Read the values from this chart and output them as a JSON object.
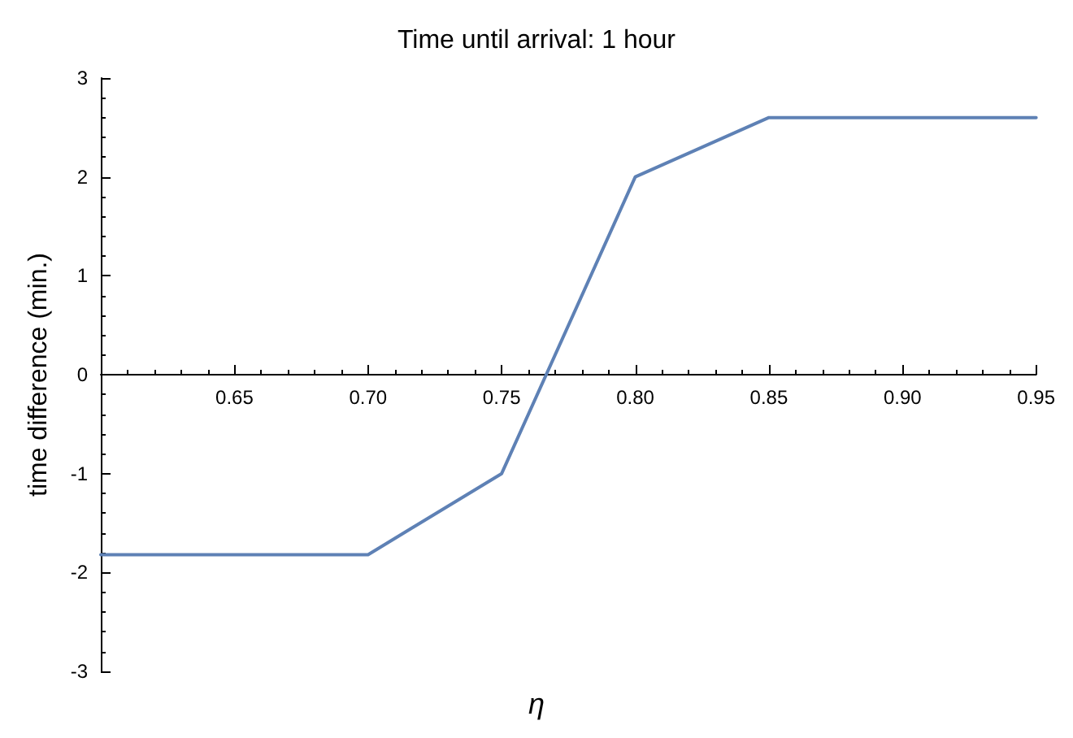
{
  "chart_data": {
    "type": "line",
    "title": "Time until arrival: 1 hour",
    "xlabel": "η",
    "ylabel": "time difference (min.)",
    "x": [
      0.6,
      0.7,
      0.75,
      0.8,
      0.85,
      0.95
    ],
    "series": [
      {
        "color": "#5e81b5",
        "values": [
          -1.82,
          -1.82,
          -1.0,
          2.0,
          2.6,
          2.6
        ]
      }
    ],
    "xlim": [
      0.6,
      0.95
    ],
    "xticks": [
      0.65,
      {
        "value": 0.7,
        "label": "0.70"
      },
      0.75,
      {
        "value": 0.8,
        "label": "0.80"
      },
      0.85,
      {
        "value": 0.9,
        "label": "0.90"
      },
      0.95
    ],
    "ylim": [
      -3,
      3
    ],
    "yticks": [
      -3,
      -2,
      -1,
      0,
      1,
      2,
      3
    ],
    "grid": false,
    "marker": "none",
    "line_style": "solid"
  }
}
